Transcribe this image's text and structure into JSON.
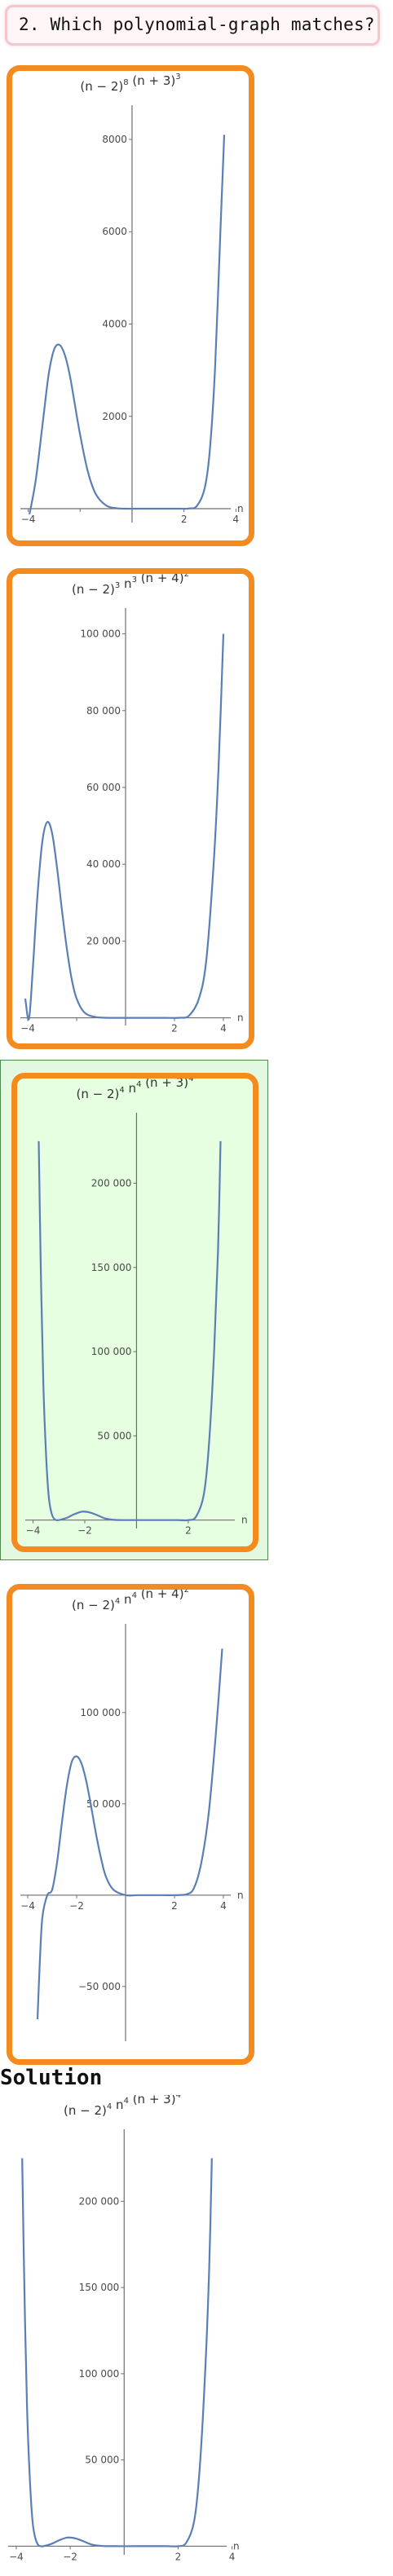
{
  "question": {
    "text": "2. Which polynomial-graph matches?"
  },
  "solution_heading": "Solution",
  "chart_data": [
    {
      "id": "option-1",
      "type": "line",
      "title": "(n − 2)⁸ (n + 3)³",
      "title_parts": {
        "a": "(n − 2)",
        "a_exp": "8",
        "b": " (n + 3)",
        "b_exp": "3",
        "c": "",
        "c_exp": ""
      },
      "xlabel": "n",
      "xlim": [
        -4.3,
        3.8
      ],
      "ylim": [
        -300,
        8600
      ],
      "x_ticks": [
        -4,
        -2,
        2,
        4
      ],
      "x_tick_labels": [
        "−4",
        "",
        "2",
        "4"
      ],
      "y_ticks": [
        2000,
        4000,
        6000,
        8000
      ],
      "y_tick_labels": [
        "2000",
        "4000",
        "6000",
        "8000"
      ],
      "x": [
        -3.95,
        -3.7,
        -3.4,
        -3.2,
        -3.0,
        -2.8,
        -2.6,
        -2.4,
        -2.2,
        -2.0,
        -1.7,
        -1.4,
        -1.0,
        -0.6,
        -0.2,
        0.2,
        0.6,
        1.0,
        1.4,
        1.8,
        2.0,
        2.2,
        2.5,
        2.8,
        3.0,
        3.2,
        3.4,
        3.55
      ],
      "y": [
        -120,
        650,
        2050,
        2950,
        3450,
        3550,
        3350,
        2900,
        2250,
        1600,
        800,
        320,
        70,
        10,
        0,
        0,
        0,
        0,
        0,
        0,
        0,
        5,
        60,
        450,
        1300,
        3100,
        6000,
        8100
      ]
    },
    {
      "id": "option-2",
      "type": "line",
      "title": "(n − 2)³ n³ (n + 4)²",
      "title_parts": {
        "a": "(n − 2)",
        "a_exp": "3",
        "b": " n",
        "b_exp": "3",
        "c": " (n + 4)",
        "c_exp": "2"
      },
      "xlabel": "n",
      "xlim": [
        -4.3,
        4.3
      ],
      "ylim": [
        -2000,
        105000
      ],
      "x_ticks": [
        -4,
        -2,
        2,
        4
      ],
      "x_tick_labels": [
        "−4",
        "",
        "2",
        "4"
      ],
      "y_ticks": [
        20000,
        40000,
        60000,
        80000,
        100000
      ],
      "y_tick_labels": [
        "20 000",
        "40 000",
        "60 000",
        "80 000",
        "100 000"
      ],
      "x": [
        -4.1,
        -3.95,
        -3.8,
        -3.6,
        -3.4,
        -3.2,
        -3.0,
        -2.8,
        -2.6,
        -2.4,
        -2.2,
        -2.0,
        -1.7,
        -1.3,
        -0.8,
        0.0,
        0.8,
        1.6,
        2.2,
        2.6,
        3.0,
        3.3,
        3.6,
        3.8,
        4.0
      ],
      "y": [
        5000,
        -300,
        12000,
        32000,
        46000,
        51000,
        48000,
        39000,
        28000,
        18000,
        10000,
        5000,
        1500,
        300,
        20,
        0,
        0,
        0,
        10,
        600,
        5000,
        15000,
        40000,
        65000,
        100000
      ]
    },
    {
      "id": "option-3",
      "type": "line",
      "title": "(n − 2)⁴ n⁴ (n + 3)⁴",
      "title_parts": {
        "a": "(n − 2)",
        "a_exp": "4",
        "b": " n",
        "b_exp": "4",
        "c": " (n + 3)",
        "c_exp": "4"
      },
      "xlabel": "n",
      "xlim": [
        -4.3,
        3.8
      ],
      "ylim": [
        -5000,
        238000
      ],
      "x_ticks": [
        -4,
        -2,
        2
      ],
      "x_tick_labels": [
        "−4",
        "−2",
        "2"
      ],
      "y_ticks": [
        50000,
        100000,
        150000,
        200000
      ],
      "y_tick_labels": [
        "50 000",
        "100 000",
        "150 000",
        "200 000"
      ],
      "x": [
        -3.78,
        -3.7,
        -3.6,
        -3.5,
        -3.4,
        -3.3,
        -3.2,
        -3.1,
        -3.0,
        -2.7,
        -2.4,
        -2.1,
        -1.8,
        -1.5,
        -1.2,
        -0.8,
        -0.3,
        0.3,
        0.8,
        1.2,
        1.6,
        2.0,
        2.3,
        2.6,
        2.8,
        3.0,
        3.15,
        3.25
      ],
      "y": [
        225000,
        150000,
        80000,
        40000,
        15000,
        5000,
        1000,
        0,
        0,
        1300,
        3500,
        5000,
        4500,
        2800,
        900,
        100,
        0,
        0,
        0,
        0,
        0,
        0,
        2000,
        15000,
        45000,
        100000,
        160000,
        225000
      ]
    },
    {
      "id": "option-4",
      "type": "line",
      "title": "(n − 2)⁴ n⁴ (n + 4)²",
      "title_parts": {
        "a": "(n − 2)",
        "a_exp": "4",
        "b": " n",
        "b_exp": "4",
        "c": " (n + 4)",
        "c_exp": "2"
      },
      "xlabel": "n",
      "xlim": [
        -4.3,
        4.3
      ],
      "ylim": [
        -80000,
        145000
      ],
      "x_ticks": [
        -4,
        -2,
        2,
        4
      ],
      "x_tick_labels": [
        "−4",
        "−2",
        "2",
        "4"
      ],
      "y_ticks": [
        -50000,
        50000,
        100000
      ],
      "y_tick_labels": [
        "−50 000",
        "50 000",
        "100 000"
      ],
      "x": [
        -3.6,
        -3.5,
        -3.4,
        -3.2,
        -3.0,
        -2.8,
        -2.6,
        -2.4,
        -2.2,
        -2.0,
        -1.8,
        -1.6,
        -1.4,
        -1.2,
        -1.0,
        -0.8,
        -0.5,
        0.0,
        0.5,
        1.0,
        1.5,
        2.0,
        2.5,
        2.8,
        3.1,
        3.4,
        3.7,
        3.95
      ],
      "y": [
        -68000,
        -35000,
        -12000,
        0,
        3000,
        18000,
        40000,
        60000,
        73000,
        76000,
        72000,
        62000,
        48000,
        33000,
        20000,
        10000,
        3000,
        0,
        0,
        0,
        0,
        0,
        500,
        4000,
        18000,
        45000,
        90000,
        135000
      ]
    },
    {
      "id": "solution",
      "type": "line",
      "title": "(n − 2)⁴ n⁴ (n + 3)⁴",
      "title_parts": {
        "a": "(n − 2)",
        "a_exp": "4",
        "b": " n",
        "b_exp": "4",
        "c": " (n + 3)",
        "c_exp": "4"
      },
      "xlabel": "n",
      "xlim": [
        -4.3,
        3.8
      ],
      "ylim": [
        -5000,
        238000
      ],
      "x_ticks": [
        -4,
        -2,
        2,
        4
      ],
      "x_tick_labels": [
        "−4",
        "−2",
        "2",
        "4"
      ],
      "y_ticks": [
        50000,
        100000,
        150000,
        200000
      ],
      "y_tick_labels": [
        "50 000",
        "100 000",
        "150 000",
        "200 000"
      ],
      "x": [
        -3.78,
        -3.7,
        -3.6,
        -3.5,
        -3.4,
        -3.3,
        -3.2,
        -3.1,
        -3.0,
        -2.7,
        -2.4,
        -2.1,
        -1.8,
        -1.5,
        -1.2,
        -0.8,
        -0.3,
        0.3,
        0.8,
        1.2,
        1.6,
        2.0,
        2.3,
        2.6,
        2.8,
        3.0,
        3.15,
        3.25
      ],
      "y": [
        225000,
        150000,
        80000,
        40000,
        15000,
        5000,
        1000,
        0,
        0,
        1300,
        3500,
        5000,
        4500,
        2800,
        900,
        100,
        0,
        0,
        0,
        0,
        0,
        0,
        2000,
        15000,
        45000,
        100000,
        160000,
        225000
      ]
    }
  ]
}
